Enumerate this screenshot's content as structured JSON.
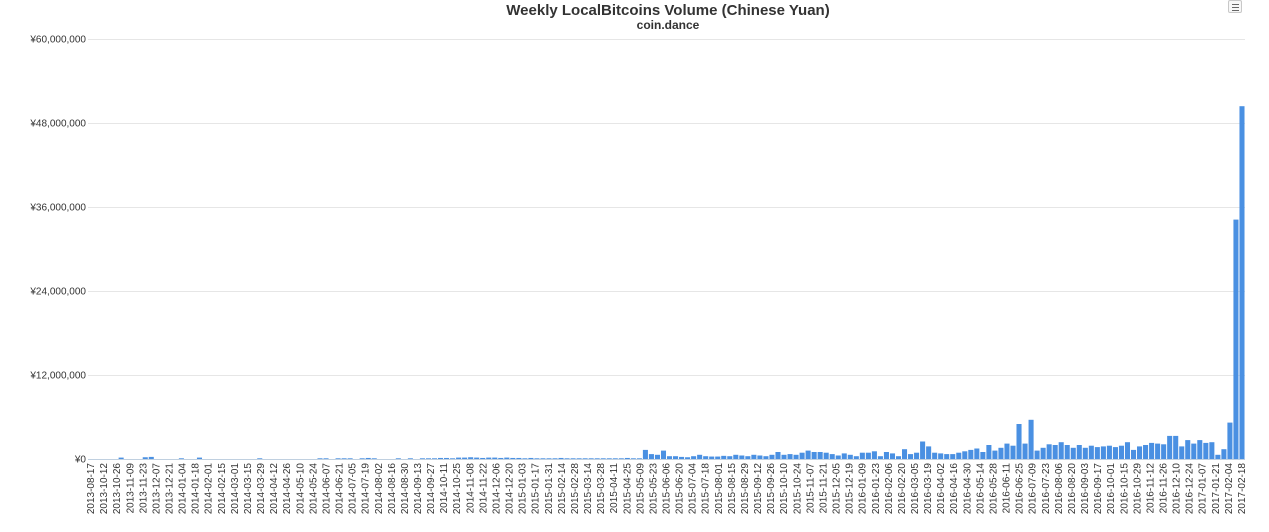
{
  "chart_data": {
    "type": "bar",
    "title": "Weekly LocalBitcoins Volume (Chinese Yuan)",
    "subtitle": "coin.dance",
    "xlabel": "",
    "ylabel": "",
    "ylim": [
      0,
      60000000
    ],
    "yticks": [
      "¥0",
      "¥12,000,000",
      "¥24,000,000",
      "¥36,000,000",
      "¥48,000,000",
      "¥60,000,000"
    ],
    "bar_color": "#4a90e2",
    "start_week": "2013-08-17",
    "values": [
      0,
      0,
      0,
      0,
      0,
      200000,
      0,
      0,
      0,
      250000,
      300000,
      0,
      0,
      0,
      0,
      100000,
      0,
      0,
      200000,
      0,
      0,
      0,
      0,
      0,
      0,
      0,
      0,
      0,
      100000,
      0,
      0,
      0,
      0,
      0,
      0,
      0,
      0,
      0,
      100000,
      100000,
      0,
      100000,
      100000,
      100000,
      0,
      100000,
      150000,
      100000,
      0,
      0,
      0,
      100000,
      0,
      100000,
      0,
      100000,
      100000,
      100000,
      150000,
      150000,
      100000,
      200000,
      200000,
      250000,
      200000,
      150000,
      200000,
      200000,
      150000,
      200000,
      150000,
      150000,
      100000,
      150000,
      100000,
      100000,
      100000,
      100000,
      150000,
      100000,
      100000,
      100000,
      100000,
      100000,
      100000,
      100000,
      100000,
      100000,
      100000,
      150000,
      100000,
      100000,
      1300000,
      700000,
      600000,
      1200000,
      400000,
      400000,
      300000,
      250000,
      400000,
      600000,
      400000,
      350000,
      350000,
      450000,
      400000,
      600000,
      500000,
      400000,
      600000,
      500000,
      400000,
      600000,
      1000000,
      600000,
      700000,
      600000,
      900000,
      1200000,
      1000000,
      1000000,
      900000,
      700000,
      500000,
      800000,
      600000,
      400000,
      900000,
      900000,
      1100000,
      400000,
      1000000,
      800000,
      400000,
      1400000,
      700000,
      900000,
      2500000,
      1800000,
      900000,
      800000,
      700000,
      700000,
      900000,
      1100000,
      1300000,
      1500000,
      1000000,
      2000000,
      1200000,
      1600000,
      2200000,
      1900000,
      5000000,
      2200000,
      5600000,
      1200000,
      1600000,
      2100000,
      2000000,
      2400000,
      2000000,
      1600000,
      2000000,
      1600000,
      1900000,
      1700000,
      1800000,
      1900000,
      1700000,
      1900000,
      2400000,
      1300000,
      1800000,
      2000000,
      2300000,
      2200000,
      2100000,
      3300000,
      3300000,
      1800000,
      2700000,
      2200000,
      2700000,
      2300000,
      2400000,
      600000,
      1400000,
      5200000,
      34200000,
      50400000
    ],
    "xtick_labels": [
      "2013-08-17",
      "2013-10-12",
      "2013-10-26",
      "2013-11-09",
      "2013-11-23",
      "2013-12-07",
      "2013-12-21",
      "2014-01-04",
      "2014-01-18",
      "2014-02-01",
      "2014-02-15",
      "2014-03-01",
      "2014-03-15",
      "2014-03-29",
      "2014-04-12",
      "2014-04-26",
      "2014-05-10",
      "2014-05-24",
      "2014-06-07",
      "2014-06-21",
      "2014-07-05",
      "2014-07-19",
      "2014-08-02",
      "2014-08-16",
      "2014-08-30",
      "2014-09-13",
      "2014-09-27",
      "2014-10-11",
      "2014-10-25",
      "2014-11-08",
      "2014-11-22",
      "2014-12-06",
      "2014-12-20",
      "2015-01-03",
      "2015-01-17",
      "2015-01-31",
      "2015-02-14",
      "2015-02-28",
      "2015-03-14",
      "2015-03-28",
      "2015-04-11",
      "2015-04-25",
      "2015-05-09",
      "2015-05-23",
      "2015-06-06",
      "2015-06-20",
      "2015-07-04",
      "2015-07-18",
      "2015-08-01",
      "2015-08-15",
      "2015-08-29",
      "2015-09-12",
      "2015-09-26",
      "2015-10-10",
      "2015-10-24",
      "2015-11-07",
      "2015-11-21",
      "2015-12-05",
      "2015-12-19",
      "2016-01-09",
      "2016-01-23",
      "2016-02-06",
      "2016-02-20",
      "2016-03-05",
      "2016-03-19",
      "2016-04-02",
      "2016-04-16",
      "2016-04-30",
      "2016-05-14",
      "2016-05-28",
      "2016-06-11",
      "2016-06-25",
      "2016-07-09",
      "2016-07-23",
      "2016-08-06",
      "2016-08-20",
      "2016-09-03",
      "2016-09-17",
      "2016-10-01",
      "2016-10-15",
      "2016-10-29",
      "2016-11-12",
      "2016-11-26",
      "2016-12-10",
      "2016-12-24",
      "2017-01-07",
      "2017-01-21",
      "2017-02-04",
      "2017-02-18"
    ]
  }
}
